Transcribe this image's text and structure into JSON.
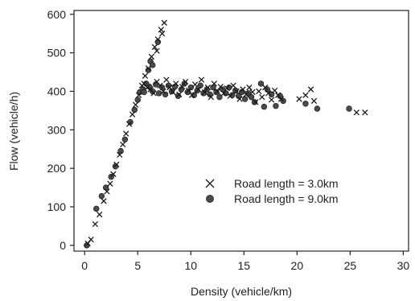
{
  "chart_data": {
    "type": "scatter",
    "title": "",
    "xlabel": "Density (vehicle/km)",
    "ylabel": "Flow (vehicle/h)",
    "xlim": [
      -1,
      30.5
    ],
    "ylim": [
      -15,
      610
    ],
    "xticks": [
      0,
      5,
      10,
      15,
      20,
      25,
      30
    ],
    "xtick_labels": [
      "0",
      "5",
      "10",
      "15",
      "20",
      "25",
      "30"
    ],
    "yticks": [
      0,
      100,
      200,
      300,
      400,
      500,
      600
    ],
    "ytick_labels": [
      "0",
      "100",
      "200",
      "300",
      "400",
      "500",
      "600"
    ],
    "grid": false,
    "legend_position": "center-right",
    "series": [
      {
        "name": "Road length = 3.0km",
        "marker": "x",
        "color": "#1a1a1a",
        "points": [
          [
            0.3,
            5
          ],
          [
            0.6,
            15
          ],
          [
            1.0,
            55
          ],
          [
            1.4,
            80
          ],
          [
            1.8,
            115
          ],
          [
            2.1,
            140
          ],
          [
            2.4,
            160
          ],
          [
            2.7,
            185
          ],
          [
            3.0,
            210
          ],
          [
            3.3,
            235
          ],
          [
            3.6,
            262
          ],
          [
            3.9,
            290
          ],
          [
            4.2,
            315
          ],
          [
            4.5,
            340
          ],
          [
            4.8,
            365
          ],
          [
            5.1,
            390
          ],
          [
            5.4,
            415
          ],
          [
            5.7,
            440
          ],
          [
            6.0,
            460
          ],
          [
            6.3,
            490
          ],
          [
            6.6,
            515
          ],
          [
            6.9,
            535
          ],
          [
            7.2,
            560
          ],
          [
            7.5,
            578
          ],
          [
            7.3,
            550
          ],
          [
            6.8,
            505
          ],
          [
            5.6,
            420
          ],
          [
            5.9,
            410
          ],
          [
            6.2,
            405
          ],
          [
            6.5,
            395
          ],
          [
            6.8,
            425
          ],
          [
            7.1,
            415
          ],
          [
            7.4,
            400
          ],
          [
            7.7,
            430
          ],
          [
            8.0,
            410
          ],
          [
            8.3,
            398
          ],
          [
            8.6,
            420
          ],
          [
            8.9,
            392
          ],
          [
            9.2,
            412
          ],
          [
            9.5,
            425
          ],
          [
            9.8,
            402
          ],
          [
            10.1,
            390
          ],
          [
            10.4,
            418
          ],
          [
            10.7,
            405
          ],
          [
            11.0,
            430
          ],
          [
            11.3,
            398
          ],
          [
            11.6,
            410
          ],
          [
            11.9,
            385
          ],
          [
            12.2,
            420
          ],
          [
            12.5,
            400
          ],
          [
            12.8,
            412
          ],
          [
            13.1,
            395
          ],
          [
            13.4,
            408
          ],
          [
            13.7,
            388
          ],
          [
            14.0,
            415
          ],
          [
            14.3,
            400
          ],
          [
            14.6,
            380
          ],
          [
            14.9,
            405
          ],
          [
            15.2,
            392
          ],
          [
            15.5,
            410
          ],
          [
            15.8,
            398
          ],
          [
            16.1,
            372
          ],
          [
            16.4,
            400
          ],
          [
            16.7,
            385
          ],
          [
            17.0,
            410
          ],
          [
            17.3,
            395
          ],
          [
            17.6,
            378
          ],
          [
            17.9,
            402
          ],
          [
            18.2,
            390
          ],
          [
            18.5,
            380
          ],
          [
            20.2,
            380
          ],
          [
            20.8,
            390
          ],
          [
            21.3,
            405
          ],
          [
            21.6,
            375
          ],
          [
            25.6,
            345
          ],
          [
            26.4,
            345
          ]
        ]
      },
      {
        "name": "Road length = 9.0km",
        "marker": "o",
        "color": "#4a4a4a",
        "points": [
          [
            0.2,
            0
          ],
          [
            1.1,
            95
          ],
          [
            1.6,
            128
          ],
          [
            2.0,
            150
          ],
          [
            2.5,
            178
          ],
          [
            2.9,
            205
          ],
          [
            3.4,
            245
          ],
          [
            3.8,
            275
          ],
          [
            4.3,
            320
          ],
          [
            4.7,
            352
          ],
          [
            5.0,
            378
          ],
          [
            5.2,
            398
          ],
          [
            5.5,
            405
          ],
          [
            5.8,
            420
          ],
          [
            6.0,
            455
          ],
          [
            6.2,
            478
          ],
          [
            6.4,
            468
          ],
          [
            6.9,
            528
          ],
          [
            5.6,
            398
          ],
          [
            6.1,
            412
          ],
          [
            6.4,
            400
          ],
          [
            6.7,
            418
          ],
          [
            7.0,
            395
          ],
          [
            7.3,
            410
          ],
          [
            7.6,
            392
          ],
          [
            7.9,
            415
          ],
          [
            8.2,
            400
          ],
          [
            8.5,
            412
          ],
          [
            8.8,
            388
          ],
          [
            9.1,
            405
          ],
          [
            9.4,
            420
          ],
          [
            9.7,
            398
          ],
          [
            10.0,
            410
          ],
          [
            10.3,
            390
          ],
          [
            10.6,
            402
          ],
          [
            10.9,
            415
          ],
          [
            11.2,
            395
          ],
          [
            11.5,
            405
          ],
          [
            11.8,
            392
          ],
          [
            12.1,
            410
          ],
          [
            12.4,
            398
          ],
          [
            12.7,
            385
          ],
          [
            13.0,
            405
          ],
          [
            13.3,
            395
          ],
          [
            13.6,
            410
          ],
          [
            13.9,
            390
          ],
          [
            14.2,
            402
          ],
          [
            14.5,
            388
          ],
          [
            14.8,
            398
          ],
          [
            15.1,
            380
          ],
          [
            15.4,
            395
          ],
          [
            15.7,
            385
          ],
          [
            16.0,
            372
          ],
          [
            16.6,
            420
          ],
          [
            16.9,
            360
          ],
          [
            17.2,
            405
          ],
          [
            17.6,
            392
          ],
          [
            18.0,
            362
          ],
          [
            18.4,
            388
          ],
          [
            18.7,
            375
          ],
          [
            20.8,
            368
          ],
          [
            21.9,
            355
          ],
          [
            24.9,
            355
          ]
        ]
      }
    ]
  }
}
